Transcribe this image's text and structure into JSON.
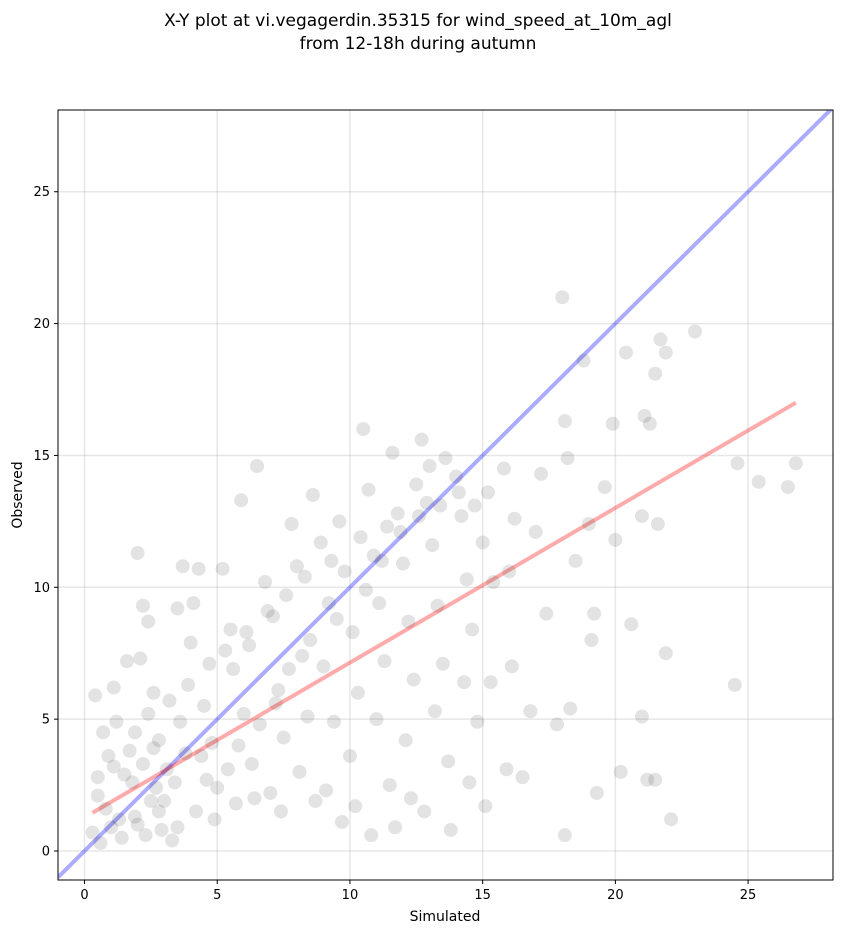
{
  "chart_data": {
    "type": "scatter",
    "title": "X-Y plot at vi.vegagerdin.35315 for wind_speed_at_10m_agl",
    "subtitle": "from 12-18h during autumn",
    "xlabel": "Simulated",
    "ylabel": "Observed",
    "xlim": [
      -1.0,
      28.2
    ],
    "ylim": [
      -1.1,
      28.1
    ],
    "xticks": [
      0,
      5,
      10,
      15,
      20,
      25
    ],
    "yticks": [
      0,
      5,
      10,
      15,
      20,
      25
    ],
    "grid": true,
    "colors": {
      "points": "#000000",
      "one_to_one_line": "#0000ff",
      "regression_line": "#ff0000"
    },
    "lines": [
      {
        "x": [
          -1.0,
          28.2
        ],
        "y": [
          -1.0,
          28.2
        ],
        "color": "#0000ff"
      },
      {
        "x": [
          0.3,
          26.8
        ],
        "y": [
          1.45,
          17.0
        ],
        "color": "#ff0000"
      }
    ],
    "series": [
      {
        "points": [
          [
            0.4,
            5.9
          ],
          [
            0.7,
            4.5
          ],
          [
            1.1,
            6.2
          ],
          [
            0.9,
            3.6
          ],
          [
            0.5,
            2.1
          ],
          [
            0.3,
            0.7
          ],
          [
            1.3,
            1.2
          ],
          [
            1.8,
            2.6
          ],
          [
            2.0,
            11.3
          ],
          [
            2.2,
            9.3
          ],
          [
            2.4,
            8.7
          ],
          [
            2.1,
            7.3
          ],
          [
            1.6,
            7.2
          ],
          [
            1.2,
            4.9
          ],
          [
            2.6,
            6.0
          ],
          [
            2.8,
            4.2
          ],
          [
            3.1,
            3.1
          ],
          [
            2.5,
            1.9
          ],
          [
            2.9,
            0.8
          ],
          [
            3.3,
            0.4
          ],
          [
            3.5,
            9.2
          ],
          [
            3.7,
            10.8
          ],
          [
            4.0,
            7.9
          ],
          [
            4.3,
            10.7
          ],
          [
            4.1,
            9.4
          ],
          [
            3.9,
            6.3
          ],
          [
            4.5,
            5.5
          ],
          [
            4.8,
            4.1
          ],
          [
            4.6,
            2.7
          ],
          [
            4.2,
            1.5
          ],
          [
            5.2,
            10.7
          ],
          [
            5.5,
            8.4
          ],
          [
            5.6,
            6.9
          ],
          [
            5.9,
            13.3
          ],
          [
            6.2,
            7.8
          ],
          [
            6.0,
            5.2
          ],
          [
            6.3,
            3.3
          ],
          [
            6.5,
            14.6
          ],
          [
            6.8,
            10.2
          ],
          [
            7.1,
            8.9
          ],
          [
            7.3,
            6.1
          ],
          [
            7.5,
            4.3
          ],
          [
            7.0,
            2.2
          ],
          [
            7.8,
            12.4
          ],
          [
            8.0,
            10.8
          ],
          [
            8.2,
            7.4
          ],
          [
            8.4,
            5.1
          ],
          [
            8.1,
            3.0
          ],
          [
            8.6,
            13.5
          ],
          [
            8.9,
            11.7
          ],
          [
            9.2,
            9.4
          ],
          [
            9.0,
            7.0
          ],
          [
            9.4,
            4.9
          ],
          [
            9.1,
            2.3
          ],
          [
            9.6,
            12.5
          ],
          [
            9.8,
            10.6
          ],
          [
            10.1,
            8.3
          ],
          [
            10.3,
            6.0
          ],
          [
            10.0,
            3.6
          ],
          [
            10.2,
            1.7
          ],
          [
            10.5,
            16.0
          ],
          [
            10.7,
            13.7
          ],
          [
            10.9,
            11.2
          ],
          [
            11.1,
            9.4
          ],
          [
            11.3,
            7.2
          ],
          [
            11.0,
            5.0
          ],
          [
            11.5,
            2.5
          ],
          [
            11.6,
            15.1
          ],
          [
            11.8,
            12.8
          ],
          [
            12.0,
            10.9
          ],
          [
            12.2,
            8.7
          ],
          [
            12.4,
            6.5
          ],
          [
            12.1,
            4.2
          ],
          [
            12.3,
            2.0
          ],
          [
            12.7,
            15.6
          ],
          [
            12.9,
            13.2
          ],
          [
            13.1,
            11.6
          ],
          [
            13.3,
            9.3
          ],
          [
            13.5,
            7.1
          ],
          [
            13.2,
            5.3
          ],
          [
            13.7,
            3.4
          ],
          [
            14.0,
            14.2
          ],
          [
            14.2,
            12.7
          ],
          [
            14.4,
            10.3
          ],
          [
            14.6,
            8.4
          ],
          [
            14.3,
            6.4
          ],
          [
            14.8,
            4.9
          ],
          [
            14.5,
            2.6
          ],
          [
            15.0,
            11.7
          ],
          [
            15.2,
            13.6
          ],
          [
            15.4,
            10.2
          ],
          [
            15.3,
            6.4
          ],
          [
            15.1,
            1.7
          ],
          [
            15.8,
            14.5
          ],
          [
            16.0,
            10.6
          ],
          [
            16.2,
            12.6
          ],
          [
            16.1,
            7.0
          ],
          [
            15.9,
            3.1
          ],
          [
            16.5,
            2.8
          ],
          [
            16.8,
            5.3
          ],
          [
            17.0,
            12.1
          ],
          [
            17.2,
            14.3
          ],
          [
            17.4,
            9.0
          ],
          [
            17.8,
            4.8
          ],
          [
            18.0,
            21.0
          ],
          [
            18.1,
            16.3
          ],
          [
            18.2,
            14.9
          ],
          [
            18.3,
            5.4
          ],
          [
            18.1,
            0.6
          ],
          [
            18.5,
            11.0
          ],
          [
            18.8,
            18.6
          ],
          [
            19.0,
            12.4
          ],
          [
            19.2,
            9.0
          ],
          [
            19.1,
            8.0
          ],
          [
            19.3,
            2.2
          ],
          [
            19.6,
            13.8
          ],
          [
            19.9,
            16.2
          ],
          [
            20.0,
            11.8
          ],
          [
            20.4,
            18.9
          ],
          [
            20.6,
            8.6
          ],
          [
            20.2,
            3.0
          ],
          [
            21.0,
            12.7
          ],
          [
            21.1,
            16.5
          ],
          [
            21.3,
            16.2
          ],
          [
            21.5,
            18.1
          ],
          [
            21.7,
            19.4
          ],
          [
            21.9,
            18.9
          ],
          [
            21.6,
            12.4
          ],
          [
            21.9,
            7.5
          ],
          [
            21.0,
            5.1
          ],
          [
            21.2,
            2.7
          ],
          [
            21.5,
            2.7
          ],
          [
            22.1,
            1.2
          ],
          [
            23.0,
            19.7
          ],
          [
            24.5,
            6.3
          ],
          [
            24.6,
            14.7
          ],
          [
            25.4,
            14.0
          ],
          [
            26.5,
            13.8
          ],
          [
            26.8,
            14.7
          ],
          [
            0.6,
            0.3
          ],
          [
            1.0,
            0.9
          ],
          [
            1.4,
            0.5
          ],
          [
            1.9,
            1.3
          ],
          [
            2.3,
            0.6
          ],
          [
            2.7,
            2.4
          ],
          [
            3.0,
            1.9
          ],
          [
            0.8,
            1.6
          ],
          [
            1.5,
            2.9
          ],
          [
            1.7,
            3.8
          ],
          [
            2.2,
            3.3
          ],
          [
            2.6,
            3.9
          ],
          [
            3.4,
            2.6
          ],
          [
            3.8,
            3.7
          ],
          [
            0.5,
            2.8
          ],
          [
            1.1,
            3.2
          ],
          [
            1.9,
            4.5
          ],
          [
            2.4,
            5.2
          ],
          [
            3.2,
            5.7
          ],
          [
            3.6,
            4.9
          ],
          [
            4.4,
            3.6
          ],
          [
            5.0,
            2.4
          ],
          [
            5.4,
            3.1
          ],
          [
            5.8,
            4.0
          ],
          [
            6.6,
            4.8
          ],
          [
            7.2,
            5.6
          ],
          [
            7.7,
            6.9
          ],
          [
            8.5,
            8.0
          ],
          [
            9.5,
            8.8
          ],
          [
            10.6,
            9.9
          ],
          [
            11.2,
            11.0
          ],
          [
            11.9,
            12.1
          ],
          [
            12.6,
            12.7
          ],
          [
            13.4,
            13.1
          ],
          [
            14.1,
            13.6
          ],
          [
            4.7,
            7.1
          ],
          [
            5.3,
            7.6
          ],
          [
            6.1,
            8.3
          ],
          [
            6.9,
            9.1
          ],
          [
            7.6,
            9.7
          ],
          [
            8.3,
            10.4
          ],
          [
            9.3,
            11.0
          ],
          [
            10.4,
            11.9
          ],
          [
            11.4,
            12.3
          ],
          [
            12.5,
            13.9
          ],
          [
            13.0,
            14.6
          ],
          [
            13.6,
            14.9
          ],
          [
            14.7,
            13.1
          ],
          [
            4.9,
            1.2
          ],
          [
            5.7,
            1.8
          ],
          [
            6.4,
            2.0
          ],
          [
            7.4,
            1.5
          ],
          [
            8.7,
            1.9
          ],
          [
            9.7,
            1.1
          ],
          [
            10.8,
            0.6
          ],
          [
            11.7,
            0.9
          ],
          [
            12.8,
            1.5
          ],
          [
            13.8,
            0.8
          ],
          [
            2.0,
            1.0
          ],
          [
            2.8,
            1.5
          ],
          [
            3.5,
            0.9
          ]
        ]
      }
    ]
  }
}
